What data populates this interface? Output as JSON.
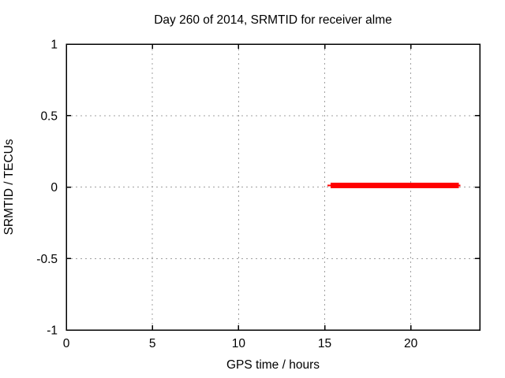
{
  "window": {
    "kind": "gnuplot chart render"
  },
  "chart_data": {
    "type": "line",
    "title": "Day 260 of 2014, SRMTID for receiver alme",
    "xlabel": "GPS time / hours",
    "ylabel": "SRMTID / TECUs",
    "xlim": [
      0,
      24
    ],
    "ylim": [
      -1,
      1
    ],
    "xticks": [
      0,
      5,
      10,
      15,
      20
    ],
    "x_tick_labels": [
      "0",
      "5",
      "10",
      "15",
      "20"
    ],
    "yticks": [
      1,
      0.5,
      0,
      -0.5,
      -1
    ],
    "y_tick_labels": [
      "1",
      "0.5",
      "0",
      "-0.5",
      "-1"
    ],
    "grid": true,
    "grid_style": "dashed",
    "legend_position": "none",
    "series": [
      {
        "name": "SRMTID",
        "color": "#ff0000",
        "style": "thick horizontal segment at constant value",
        "y_value": 0.01,
        "x_start": 15.17,
        "x_end": 22.88
      }
    ],
    "colors": {
      "axis": "#000000",
      "grid": "#a0a0a0",
      "background": "#ffffff",
      "series_red": "#ff0000"
    }
  }
}
